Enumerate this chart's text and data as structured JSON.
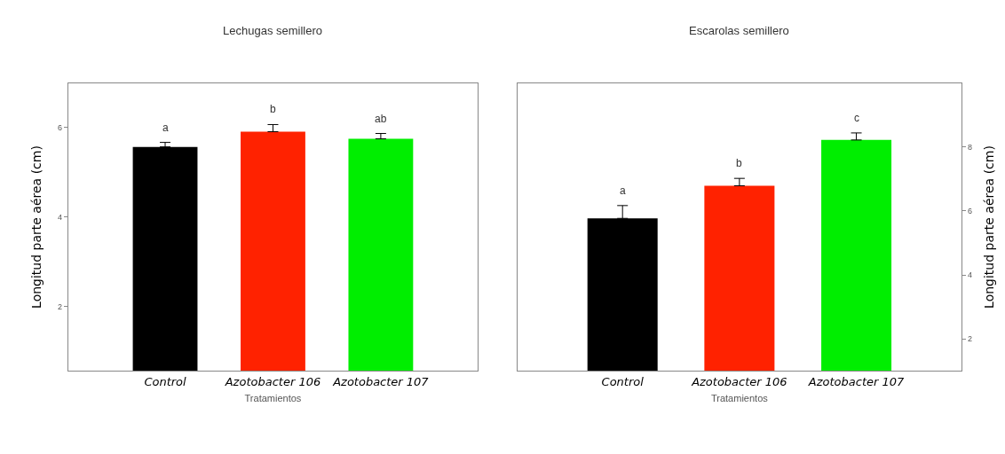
{
  "chart_data": [
    {
      "type": "bar",
      "title": "Lechugas semillero",
      "xlabel": "Tratamientos",
      "ylabel": "Longitud parte aérea (cm)",
      "categories": [
        "Control",
        "Azotobacter 106",
        "Azotobacter 107"
      ],
      "values": [
        5.57,
        5.91,
        5.75
      ],
      "errors": [
        0.1,
        0.16,
        0.12
      ],
      "colors": [
        "#000000",
        "#ff2200",
        "#00ee00"
      ],
      "ylim": [
        0.55,
        7.0
      ],
      "yticks": [
        2,
        4,
        6
      ],
      "annotations": [
        "a",
        "b",
        "ab"
      ]
    },
    {
      "type": "bar",
      "title": "Escarolas semillero",
      "xlabel": "Tratamientos",
      "ylabel": "Longitud parte aérea (cm)",
      "categories": [
        "Control",
        "Azotobacter 106",
        "Azotobacter 107"
      ],
      "values": [
        5.77,
        6.79,
        8.22
      ],
      "errors": [
        0.4,
        0.23,
        0.22
      ],
      "colors": [
        "#000000",
        "#ff2200",
        "#00ee00"
      ],
      "ylim": [
        1.0,
        10.0
      ],
      "yticks": [
        2,
        4,
        6,
        8
      ],
      "annotations": [
        "a",
        "b",
        "c"
      ]
    }
  ]
}
